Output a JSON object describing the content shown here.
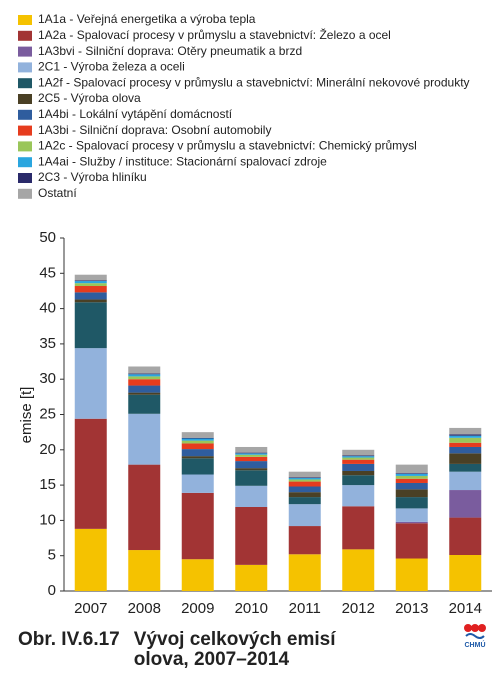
{
  "chart_data": {
    "type": "stacked-bar",
    "figure_label": "Obr. IV.6.17",
    "title": "Vývoj celkových emisí olova, 2007–2014",
    "logo_text": "CHMÚ",
    "ylabel": "emise [t]",
    "categories": [
      "2007",
      "2008",
      "2009",
      "2010",
      "2011",
      "2012",
      "2013",
      "2014"
    ],
    "ylim": [
      0,
      50
    ],
    "yticks": [
      0,
      5,
      10,
      15,
      20,
      25,
      30,
      35,
      40,
      45,
      50
    ],
    "series": [
      {
        "name": "1A1a - Veřejná energetika a výroba tepla",
        "color": "#f5c200",
        "values": [
          8.8,
          5.8,
          4.5,
          3.7,
          5.2,
          5.9,
          4.6,
          5.1
        ]
      },
      {
        "name": "1A2a - Spalovací procesy v průmyslu a stavebnictví: Železo a ocel",
        "color": "#a23434",
        "values": [
          15.6,
          12.1,
          9.4,
          8.2,
          4.0,
          6.1,
          5.0,
          5.3
        ]
      },
      {
        "name": "1A3bvi - Silniční doprava: Otěry pneumatik a brzd",
        "color": "#7a5c9e",
        "values": [
          0,
          0,
          0,
          0,
          0,
          0,
          0.2,
          3.9
        ]
      },
      {
        "name": "2C1 - Výroba železa a oceli",
        "color": "#92b2dc",
        "values": [
          10.0,
          7.2,
          2.6,
          3.0,
          3.1,
          3.0,
          1.9,
          2.6
        ]
      },
      {
        "name": "1A2f - Spalovací procesy v průmyslu a stavebnictví: Minerální nekovové produkty",
        "color": "#1f5866",
        "values": [
          6.5,
          2.7,
          2.3,
          2.2,
          1.0,
          1.4,
          1.6,
          1.1
        ]
      },
      {
        "name": "2C5 - Výroba olova",
        "color": "#4a4025",
        "values": [
          0.4,
          0.3,
          0.3,
          0.3,
          0.7,
          0.6,
          1.1,
          1.5
        ]
      },
      {
        "name": "1A4bi - Lokální vytápění domácností",
        "color": "#2f5d9e",
        "values": [
          1.0,
          1.0,
          1.0,
          1.0,
          0.8,
          1.0,
          0.9,
          0.9
        ]
      },
      {
        "name": "1A3bi - Silniční doprava: Osobní automobily",
        "color": "#e63c1e",
        "values": [
          0.9,
          0.9,
          0.8,
          0.6,
          0.7,
          0.6,
          0.6,
          0.6
        ]
      },
      {
        "name": "1A2c - Spalovací procesy v průmyslu a stavebnictví: Chemický průmysl",
        "color": "#9ac65a",
        "values": [
          0.4,
          0.4,
          0.4,
          0.3,
          0.3,
          0.3,
          0.4,
          0.7
        ]
      },
      {
        "name": "1A4ai - Služby / instituce: Stacionární spalovací zdroje",
        "color": "#2aa6df",
        "values": [
          0.3,
          0.3,
          0.3,
          0.2,
          0.2,
          0.2,
          0.3,
          0.3
        ]
      },
      {
        "name": "2C3 - Výroba hliníku",
        "color": "#2a2a6a",
        "values": [
          0.1,
          0.1,
          0.1,
          0.1,
          0.1,
          0.1,
          0.1,
          0.2
        ]
      },
      {
        "name": "Ostatní",
        "color": "#a6a6a6",
        "values": [
          0.8,
          1.0,
          0.8,
          0.8,
          0.8,
          0.8,
          1.2,
          0.9
        ]
      }
    ]
  }
}
